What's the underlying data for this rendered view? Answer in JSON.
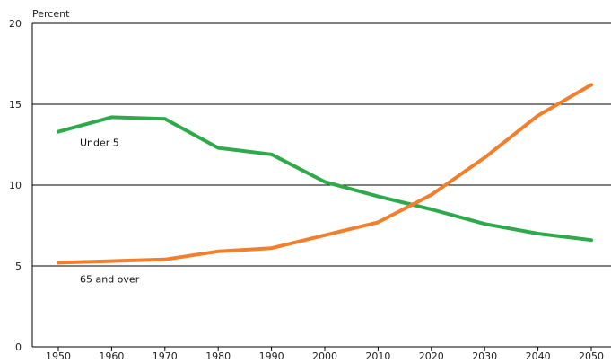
{
  "chart_data": {
    "type": "line",
    "title": "",
    "ylabel": "Percent",
    "xlabel": "",
    "x": [
      1950,
      1960,
      1970,
      1980,
      1990,
      2000,
      2010,
      2020,
      2030,
      2040,
      2050
    ],
    "ylim": [
      0,
      20
    ],
    "yticks": [
      0,
      5,
      10,
      15,
      20
    ],
    "grid": "horizontal",
    "legend": "none",
    "series": [
      {
        "name": "Under 5",
        "color": "#2eaa4a",
        "values": [
          13.3,
          14.2,
          14.1,
          12.3,
          11.9,
          10.2,
          9.3,
          8.5,
          7.6,
          7.0,
          6.6
        ]
      },
      {
        "name": "65 and over",
        "color": "#f07f2e",
        "values": [
          5.2,
          5.3,
          5.4,
          5.9,
          6.1,
          6.9,
          7.7,
          9.4,
          11.7,
          14.3,
          16.2
        ]
      }
    ]
  }
}
